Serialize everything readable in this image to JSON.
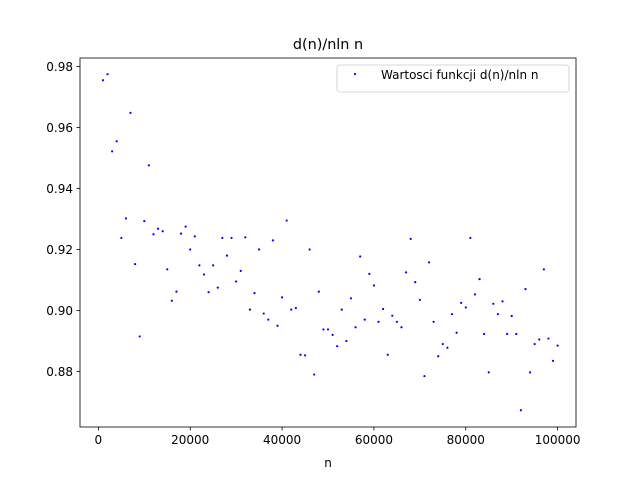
{
  "chart_data": {
    "type": "scatter",
    "title": "d(n)/nln n",
    "xlabel": "n",
    "ylabel": "",
    "xlim": [
      -4000,
      104000
    ],
    "ylim": [
      0.8618,
      0.9828
    ],
    "xticks": [
      0,
      20000,
      40000,
      60000,
      80000,
      100000
    ],
    "xtick_labels": [
      "0",
      "20000",
      "40000",
      "60000",
      "80000",
      "100000"
    ],
    "yticks": [
      0.88,
      0.9,
      0.92,
      0.94,
      0.96,
      0.98
    ],
    "ytick_labels": [
      "0.88",
      "0.90",
      "0.92",
      "0.94",
      "0.96",
      "0.98"
    ],
    "grid": false,
    "legend_position": "upper right",
    "marker_color": "#0000ff",
    "series": [
      {
        "name": "Wartosci funkcji d(n)/nln n",
        "points": [
          [
            1000,
            0.9755
          ],
          [
            2000,
            0.9775
          ],
          [
            3000,
            0.9522
          ],
          [
            4000,
            0.9555
          ],
          [
            5000,
            0.9238
          ],
          [
            6000,
            0.9302
          ],
          [
            7000,
            0.9648
          ],
          [
            8000,
            0.9152
          ],
          [
            9000,
            0.8915
          ],
          [
            10000,
            0.9293
          ],
          [
            11000,
            0.9476
          ],
          [
            12000,
            0.925
          ],
          [
            13000,
            0.9268
          ],
          [
            14000,
            0.926
          ],
          [
            15000,
            0.9135
          ],
          [
            16000,
            0.9032
          ],
          [
            17000,
            0.9062
          ],
          [
            18000,
            0.9252
          ],
          [
            19000,
            0.9275
          ],
          [
            20000,
            0.92
          ],
          [
            21000,
            0.9243
          ],
          [
            22000,
            0.9148
          ],
          [
            23000,
            0.9118
          ],
          [
            24000,
            0.906
          ],
          [
            25000,
            0.9148
          ],
          [
            26000,
            0.9075
          ],
          [
            27000,
            0.9238
          ],
          [
            28000,
            0.918
          ],
          [
            29000,
            0.9238
          ],
          [
            30000,
            0.9095
          ],
          [
            31000,
            0.913
          ],
          [
            32000,
            0.924
          ],
          [
            33000,
            0.9003
          ],
          [
            34000,
            0.9057
          ],
          [
            35000,
            0.92
          ],
          [
            36000,
            0.899
          ],
          [
            37000,
            0.897
          ],
          [
            38000,
            0.923
          ],
          [
            39000,
            0.895
          ],
          [
            40000,
            0.9043
          ],
          [
            41000,
            0.9295
          ],
          [
            42000,
            0.9003
          ],
          [
            43000,
            0.9008
          ],
          [
            44000,
            0.8855
          ],
          [
            45000,
            0.8853
          ],
          [
            46000,
            0.92
          ],
          [
            47000,
            0.879
          ],
          [
            48000,
            0.9062
          ],
          [
            49000,
            0.8938
          ],
          [
            50000,
            0.8938
          ],
          [
            51000,
            0.892
          ],
          [
            52000,
            0.8883
          ],
          [
            53000,
            0.9003
          ],
          [
            54000,
            0.89
          ],
          [
            55000,
            0.904
          ],
          [
            56000,
            0.8945
          ],
          [
            57000,
            0.9177
          ],
          [
            58000,
            0.897
          ],
          [
            59000,
            0.912
          ],
          [
            60000,
            0.9082
          ],
          [
            61000,
            0.8963
          ],
          [
            62000,
            0.9005
          ],
          [
            63000,
            0.8855
          ],
          [
            64000,
            0.8983
          ],
          [
            65000,
            0.8963
          ],
          [
            66000,
            0.8945
          ],
          [
            67000,
            0.9125
          ],
          [
            68000,
            0.9235
          ],
          [
            69000,
            0.9093
          ],
          [
            70000,
            0.9035
          ],
          [
            71000,
            0.8785
          ],
          [
            72000,
            0.9158
          ],
          [
            73000,
            0.8963
          ],
          [
            74000,
            0.885
          ],
          [
            75000,
            0.889
          ],
          [
            76000,
            0.8878
          ],
          [
            77000,
            0.8988
          ],
          [
            78000,
            0.8927
          ],
          [
            79000,
            0.9025
          ],
          [
            80000,
            0.901
          ],
          [
            81000,
            0.9238
          ],
          [
            82000,
            0.9053
          ],
          [
            83000,
            0.9103
          ],
          [
            84000,
            0.8923
          ],
          [
            85000,
            0.8797
          ],
          [
            86000,
            0.9022
          ],
          [
            87000,
            0.8988
          ],
          [
            88000,
            0.903
          ],
          [
            89000,
            0.8923
          ],
          [
            90000,
            0.8982
          ],
          [
            91000,
            0.8923
          ],
          [
            92000,
            0.8673
          ],
          [
            93000,
            0.907
          ],
          [
            94000,
            0.8797
          ],
          [
            95000,
            0.889
          ],
          [
            96000,
            0.8905
          ],
          [
            97000,
            0.9135
          ],
          [
            98000,
            0.8908
          ],
          [
            99000,
            0.8835
          ],
          [
            100000,
            0.8885
          ]
        ]
      }
    ]
  }
}
